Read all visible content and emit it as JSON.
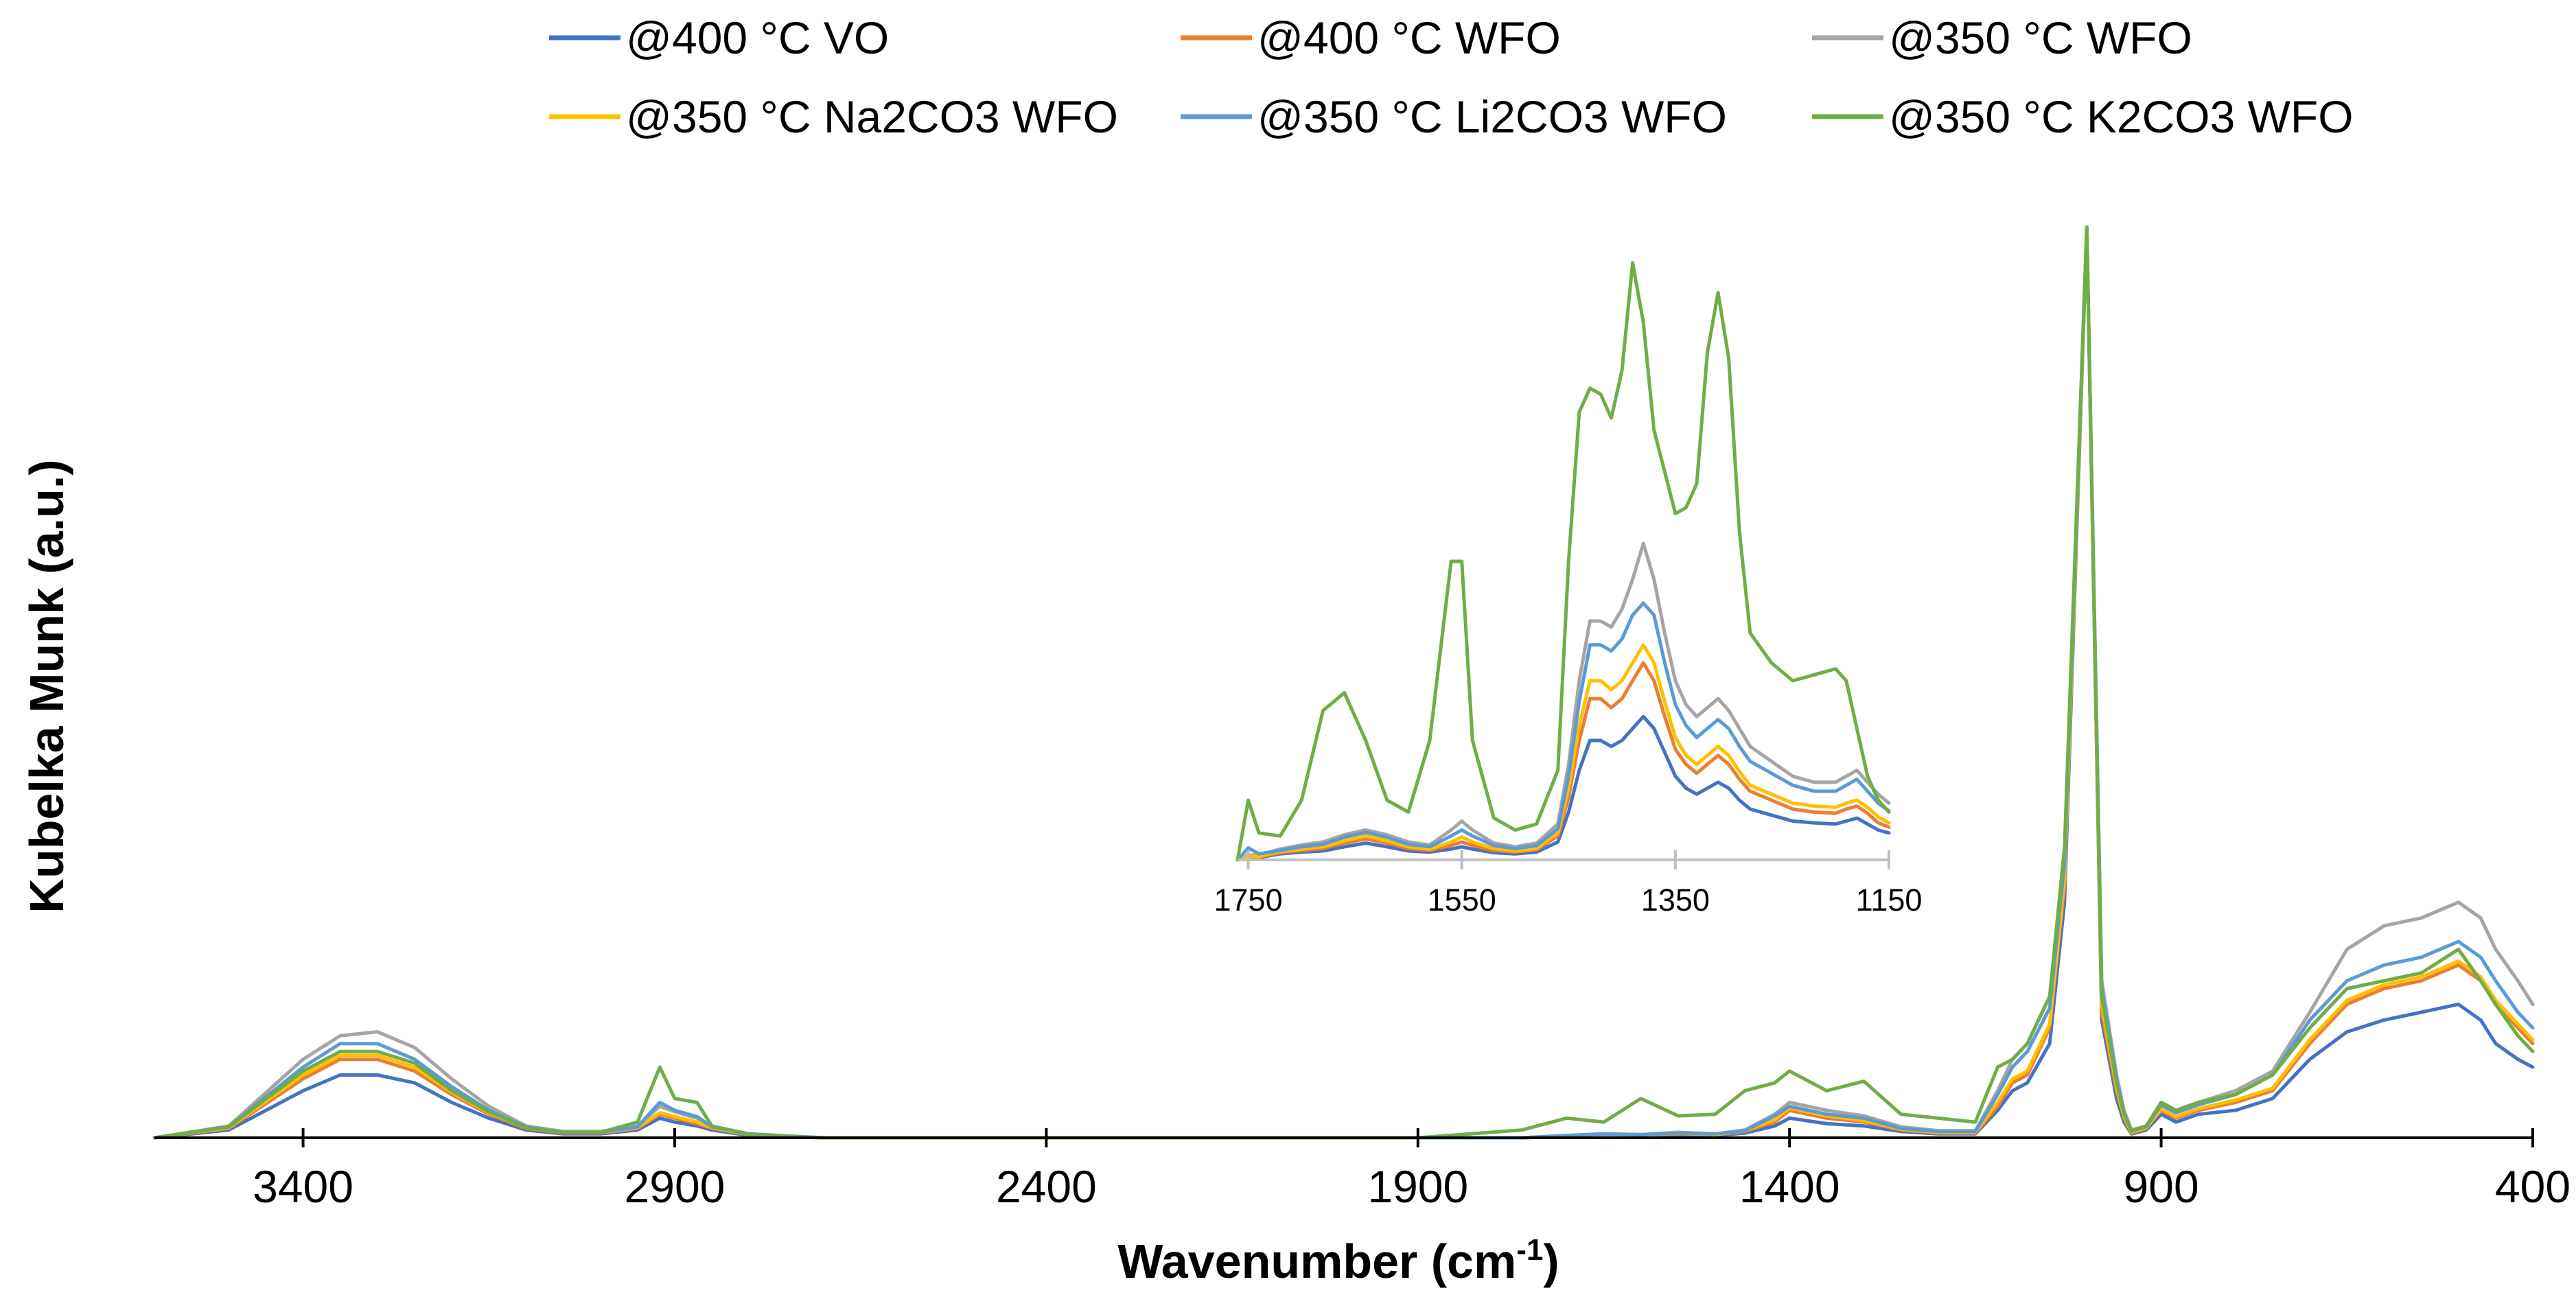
{
  "chart_data": [
    {
      "id": "main",
      "type": "line",
      "title": "",
      "xlabel": "Wavenumber (cm",
      "xlabel_sup": "-1",
      "xlabel_suffix": ")",
      "ylabel": "Kubelka Munk (a.u.)",
      "xlim": [
        3600,
        400
      ],
      "ylim": [
        0,
        1.25
      ],
      "x_reversed": true,
      "grid": false,
      "legend_position": "top",
      "x_ticks": [
        "3400",
        "2900",
        "2400",
        "1900",
        "1400",
        "900",
        "400"
      ],
      "x_tick_values": [
        3400,
        2900,
        2400,
        1900,
        1400,
        900,
        400
      ],
      "x_base": [
        3600,
        3500,
        3400,
        3350,
        3300,
        3250,
        3200,
        3150,
        3100,
        3050,
        3000,
        2950,
        2920,
        2900,
        2870,
        2850,
        2800,
        2700,
        2600,
        2400,
        1900,
        1760,
        1700,
        1650,
        1600,
        1550,
        1500,
        1460,
        1420,
        1400,
        1350,
        1300,
        1250,
        1200,
        1150,
        1120,
        1100,
        1080,
        1050,
        1030,
        1000,
        980,
        960,
        950,
        940,
        920,
        900,
        880,
        850,
        800,
        750,
        700,
        650,
        600,
        550,
        500,
        470,
        450,
        420,
        400
      ],
      "series": [
        {
          "name": "@400 °C VO",
          "color": "#4472C4",
          "values": [
            0,
            0.01,
            0.06,
            0.08,
            0.08,
            0.07,
            0.045,
            0.025,
            0.01,
            0.005,
            0.005,
            0.01,
            0.025,
            0.02,
            0.015,
            0.01,
            0.003,
            0,
            0,
            0,
            0,
            0,
            0.002,
            0.003,
            0.002,
            0.004,
            0.003,
            0.006,
            0.015,
            0.025,
            0.018,
            0.015,
            0.008,
            0.005,
            0.005,
            0.035,
            0.06,
            0.07,
            0.12,
            0.3,
            1.16,
            0.15,
            0.05,
            0.02,
            0.005,
            0.01,
            0.03,
            0.02,
            0.03,
            0.035,
            0.05,
            0.1,
            0.135,
            0.15,
            0.16,
            0.17,
            0.15,
            0.12,
            0.1,
            0.09
          ]
        },
        {
          "name": "@400 °C WFO",
          "color": "#ED7D31",
          "values": [
            0,
            0.012,
            0.075,
            0.1,
            0.1,
            0.085,
            0.055,
            0.03,
            0.012,
            0.006,
            0.006,
            0.012,
            0.03,
            0.025,
            0.018,
            0.012,
            0.004,
            0,
            0,
            0,
            0,
            0,
            0.002,
            0.004,
            0.003,
            0.005,
            0.004,
            0.008,
            0.02,
            0.035,
            0.025,
            0.02,
            0.01,
            0.006,
            0.006,
            0.04,
            0.07,
            0.08,
            0.14,
            0.32,
            1.16,
            0.16,
            0.06,
            0.025,
            0.006,
            0.012,
            0.035,
            0.025,
            0.035,
            0.045,
            0.06,
            0.12,
            0.17,
            0.19,
            0.2,
            0.22,
            0.2,
            0.17,
            0.14,
            0.12
          ]
        },
        {
          "name": "@350 °C WFO",
          "color": "#A5A5A5",
          "values": [
            0,
            0.015,
            0.1,
            0.13,
            0.135,
            0.115,
            0.075,
            0.04,
            0.015,
            0.008,
            0.008,
            0.015,
            0.04,
            0.033,
            0.025,
            0.015,
            0.005,
            0,
            0,
            0,
            0,
            0,
            0.003,
            0.005,
            0.004,
            0.007,
            0.005,
            0.01,
            0.03,
            0.045,
            0.035,
            0.028,
            0.014,
            0.009,
            0.009,
            0.06,
            0.1,
            0.12,
            0.18,
            0.36,
            1.16,
            0.2,
            0.08,
            0.035,
            0.01,
            0.015,
            0.045,
            0.035,
            0.045,
            0.06,
            0.085,
            0.16,
            0.24,
            0.27,
            0.28,
            0.3,
            0.28,
            0.24,
            0.2,
            0.17
          ]
        },
        {
          "name": "@350 °C Na2CO3 WFO",
          "color": "#FFC000",
          "values": [
            0,
            0.013,
            0.08,
            0.105,
            0.105,
            0.09,
            0.058,
            0.032,
            0.013,
            0.007,
            0.007,
            0.013,
            0.032,
            0.027,
            0.02,
            0.013,
            0.004,
            0,
            0,
            0,
            0,
            0,
            0.002,
            0.004,
            0.003,
            0.006,
            0.004,
            0.009,
            0.023,
            0.038,
            0.028,
            0.022,
            0.011,
            0.007,
            0.007,
            0.045,
            0.075,
            0.085,
            0.145,
            0.33,
            1.16,
            0.17,
            0.065,
            0.027,
            0.007,
            0.013,
            0.037,
            0.027,
            0.037,
            0.048,
            0.063,
            0.125,
            0.175,
            0.195,
            0.205,
            0.225,
            0.205,
            0.175,
            0.145,
            0.125
          ]
        },
        {
          "name": "@350 °C Li2CO3 WFO",
          "color": "#5B9BD5",
          "values": [
            0,
            0.014,
            0.09,
            0.12,
            0.12,
            0.1,
            0.065,
            0.035,
            0.014,
            0.007,
            0.007,
            0.014,
            0.045,
            0.035,
            0.027,
            0.014,
            0.005,
            0,
            0,
            0,
            0,
            0,
            0.003,
            0.005,
            0.004,
            0.006,
            0.005,
            0.009,
            0.028,
            0.04,
            0.03,
            0.025,
            0.012,
            0.008,
            0.008,
            0.055,
            0.09,
            0.11,
            0.165,
            0.35,
            1.16,
            0.19,
            0.075,
            0.03,
            0.009,
            0.014,
            0.042,
            0.032,
            0.042,
            0.055,
            0.08,
            0.15,
            0.2,
            0.22,
            0.23,
            0.25,
            0.23,
            0.2,
            0.16,
            0.14
          ]
        },
        {
          "name": "@350 °C K2CO3 WFO",
          "color": "#70AD47",
          "values": [
            0,
            0.014,
            0.085,
            0.11,
            0.11,
            0.095,
            0.06,
            0.033,
            0.013,
            0.007,
            0.007,
            0.02,
            0.09,
            0.05,
            0.045,
            0.015,
            0.004,
            0,
            0,
            0,
            0,
            0.01,
            0.025,
            0.02,
            0.05,
            0.028,
            0.03,
            0.06,
            0.07,
            0.085,
            0.06,
            0.072,
            0.03,
            0.025,
            0.02,
            0.09,
            0.1,
            0.12,
            0.18,
            0.37,
            1.16,
            0.18,
            0.07,
            0.03,
            0.008,
            0.015,
            0.045,
            0.035,
            0.045,
            0.055,
            0.08,
            0.14,
            0.19,
            0.2,
            0.21,
            0.24,
            0.2,
            0.17,
            0.13,
            0.11
          ]
        }
      ]
    },
    {
      "id": "inset",
      "type": "line",
      "title": "",
      "xlim": [
        1760,
        1150
      ],
      "ylim": [
        0,
        1
      ],
      "x_reversed": true,
      "grid": false,
      "x_ticks": [
        "1750",
        "1550",
        "1350",
        "1150"
      ],
      "x_tick_values": [
        1750,
        1550,
        1350,
        1150
      ],
      "x_base": [
        1760,
        1750,
        1740,
        1720,
        1700,
        1680,
        1660,
        1640,
        1620,
        1600,
        1580,
        1560,
        1550,
        1540,
        1520,
        1500,
        1480,
        1460,
        1450,
        1440,
        1430,
        1420,
        1410,
        1400,
        1390,
        1380,
        1370,
        1360,
        1350,
        1340,
        1330,
        1320,
        1310,
        1300,
        1290,
        1280,
        1260,
        1240,
        1220,
        1200,
        1190,
        1180,
        1170,
        1160,
        1150
      ],
      "series": [
        {
          "name": "@400 °C VO",
          "color": "#4472C4",
          "values": [
            0,
            0.004,
            0.004,
            0.01,
            0.013,
            0.015,
            0.022,
            0.028,
            0.022,
            0.015,
            0.013,
            0.018,
            0.022,
            0.018,
            0.012,
            0.01,
            0.013,
            0.03,
            0.08,
            0.15,
            0.2,
            0.2,
            0.19,
            0.2,
            0.22,
            0.24,
            0.22,
            0.18,
            0.14,
            0.12,
            0.11,
            0.12,
            0.13,
            0.12,
            0.1,
            0.085,
            0.075,
            0.065,
            0.062,
            0.06,
            0.065,
            0.07,
            0.06,
            0.05,
            0.045
          ]
        },
        {
          "name": "@400 °C WFO",
          "color": "#ED7D31",
          "values": [
            0,
            0.005,
            0.005,
            0.012,
            0.016,
            0.019,
            0.028,
            0.035,
            0.028,
            0.019,
            0.016,
            0.024,
            0.03,
            0.024,
            0.016,
            0.013,
            0.017,
            0.04,
            0.105,
            0.2,
            0.27,
            0.27,
            0.255,
            0.27,
            0.3,
            0.33,
            0.3,
            0.24,
            0.185,
            0.16,
            0.145,
            0.16,
            0.175,
            0.16,
            0.135,
            0.115,
            0.1,
            0.085,
            0.08,
            0.078,
            0.085,
            0.09,
            0.078,
            0.062,
            0.055
          ]
        },
        {
          "name": "@350 °C WFO",
          "color": "#A5A5A5",
          "values": [
            0,
            0.008,
            0.008,
            0.018,
            0.025,
            0.03,
            0.042,
            0.05,
            0.042,
            0.03,
            0.025,
            0.05,
            0.065,
            0.05,
            0.028,
            0.022,
            0.028,
            0.06,
            0.16,
            0.3,
            0.4,
            0.4,
            0.39,
            0.42,
            0.47,
            0.53,
            0.47,
            0.38,
            0.3,
            0.26,
            0.24,
            0.255,
            0.27,
            0.25,
            0.22,
            0.19,
            0.165,
            0.14,
            0.13,
            0.13,
            0.14,
            0.15,
            0.13,
            0.11,
            0.095
          ]
        },
        {
          "name": "@350 °C Na2CO3 WFO",
          "color": "#FFC000",
          "values": [
            0,
            0.006,
            0.006,
            0.014,
            0.018,
            0.022,
            0.032,
            0.04,
            0.032,
            0.022,
            0.018,
            0.03,
            0.038,
            0.03,
            0.019,
            0.015,
            0.019,
            0.045,
            0.12,
            0.225,
            0.3,
            0.3,
            0.285,
            0.3,
            0.33,
            0.36,
            0.33,
            0.265,
            0.205,
            0.175,
            0.16,
            0.175,
            0.19,
            0.175,
            0.148,
            0.125,
            0.11,
            0.095,
            0.09,
            0.088,
            0.095,
            0.1,
            0.088,
            0.072,
            0.062
          ]
        },
        {
          "name": "@350 °C Li2CO3 WFO",
          "color": "#5B9BD5",
          "values": [
            0,
            0.02,
            0.01,
            0.016,
            0.022,
            0.026,
            0.038,
            0.046,
            0.038,
            0.026,
            0.022,
            0.04,
            0.05,
            0.04,
            0.024,
            0.019,
            0.024,
            0.052,
            0.14,
            0.265,
            0.36,
            0.36,
            0.35,
            0.37,
            0.41,
            0.43,
            0.41,
            0.33,
            0.26,
            0.225,
            0.205,
            0.22,
            0.235,
            0.22,
            0.19,
            0.165,
            0.145,
            0.125,
            0.115,
            0.115,
            0.125,
            0.135,
            0.115,
            0.095,
            0.082
          ]
        },
        {
          "name": "@350 °C K2CO3 WFO",
          "color": "#70AD47",
          "values": [
            0,
            0.1,
            0.045,
            0.04,
            0.1,
            0.25,
            0.28,
            0.2,
            0.1,
            0.08,
            0.2,
            0.5,
            0.5,
            0.2,
            0.07,
            0.05,
            0.06,
            0.15,
            0.5,
            0.75,
            0.79,
            0.78,
            0.74,
            0.82,
            1.0,
            0.9,
            0.72,
            0.65,
            0.58,
            0.59,
            0.63,
            0.85,
            0.95,
            0.84,
            0.55,
            0.38,
            0.33,
            0.3,
            0.31,
            0.32,
            0.3,
            0.22,
            0.14,
            0.1,
            0.08
          ]
        }
      ]
    }
  ]
}
